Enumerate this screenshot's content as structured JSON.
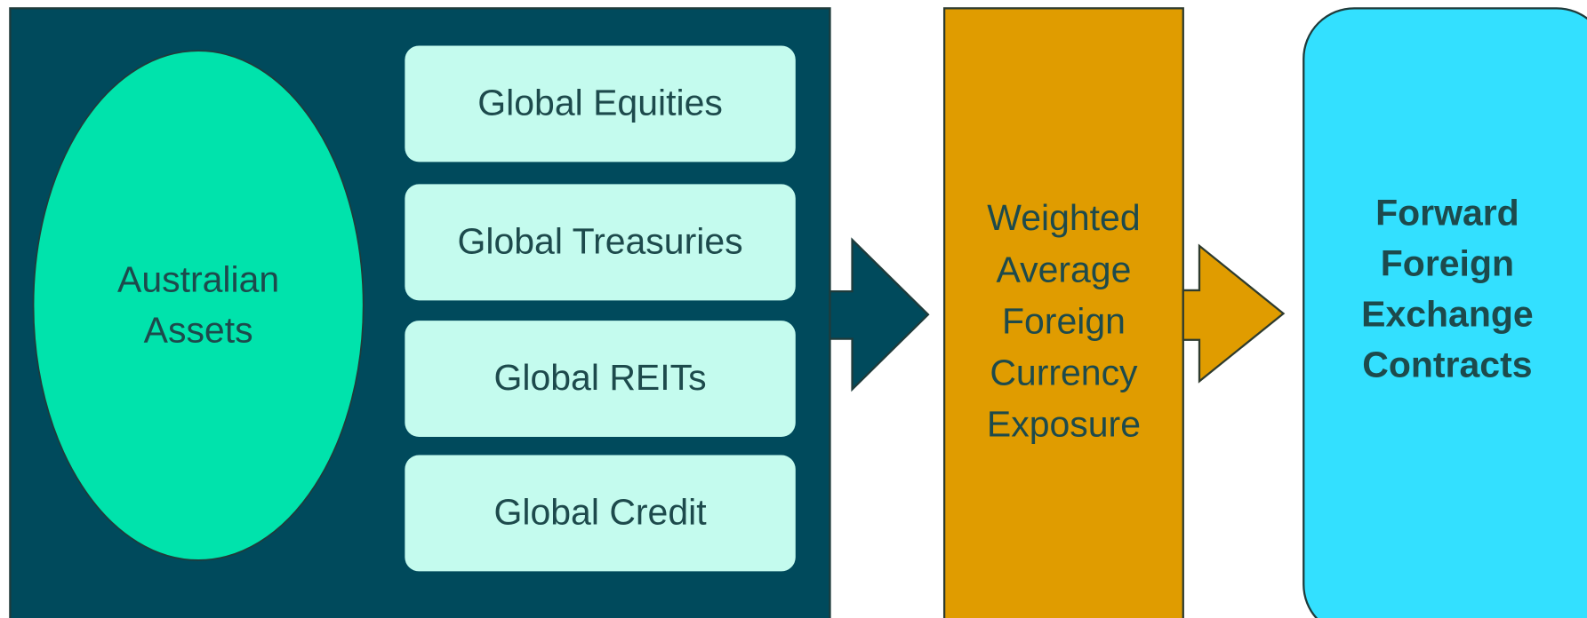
{
  "nodes": [
    {
      "label_lines": [
        "Australian",
        "Assets"
      ]
    },
    {
      "label_lines": [
        "Global Equities"
      ]
    },
    {
      "label_lines": [
        "Global Treasuries"
      ]
    },
    {
      "label_lines": [
        "Global REITs"
      ]
    },
    {
      "label_lines": [
        "Global Credit"
      ]
    },
    {
      "label_lines": [
        "Weighted",
        "Average",
        "Foreign",
        "Currency",
        "Exposure"
      ]
    },
    {
      "label_lines": [
        "Forward",
        "Foreign",
        "Exchange",
        "Contracts"
      ]
    }
  ]
}
